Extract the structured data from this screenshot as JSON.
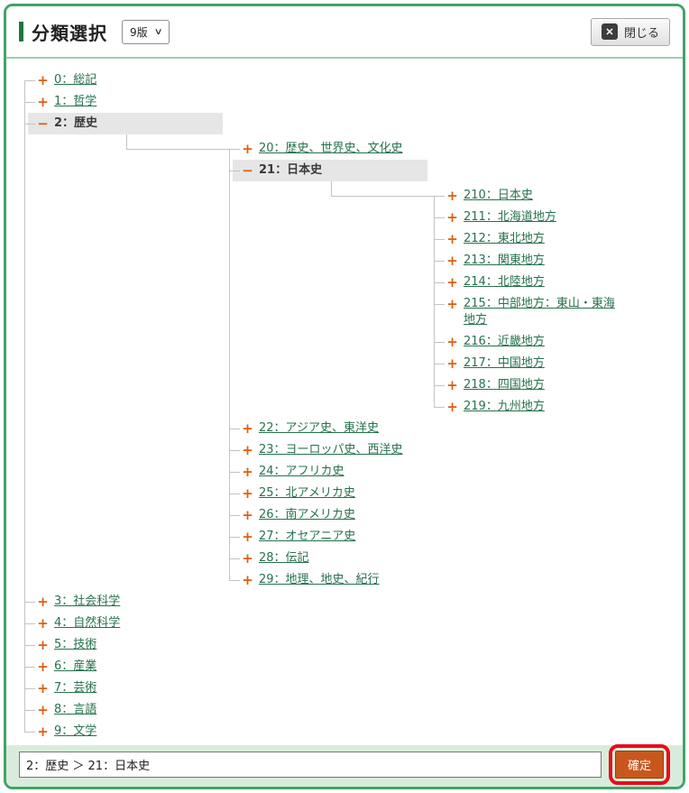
{
  "header": {
    "title": "分類選択",
    "edition_select": {
      "value": "9版",
      "chevron_icon": "∨"
    },
    "close_button": {
      "label": "閉じる",
      "icon_glyph": "✕"
    }
  },
  "tree": {
    "root": [
      {
        "toggle": "+",
        "label": "0：総記"
      },
      {
        "toggle": "+",
        "label": "1：哲学"
      },
      {
        "toggle": "−",
        "label": "2：歴史",
        "children": [
          {
            "toggle": "+",
            "label": "20：歴史、世界史、文化史"
          },
          {
            "toggle": "−",
            "label": "21：日本史",
            "children": [
              {
                "toggle": "+",
                "label": "210：日本史"
              },
              {
                "toggle": "+",
                "label": "211：北海道地方"
              },
              {
                "toggle": "+",
                "label": "212：東北地方"
              },
              {
                "toggle": "+",
                "label": "213：関東地方"
              },
              {
                "toggle": "+",
                "label": "214：北陸地方"
              },
              {
                "toggle": "+",
                "label": "215：中部地方：東山・東海地方"
              },
              {
                "toggle": "+",
                "label": "216：近畿地方"
              },
              {
                "toggle": "+",
                "label": "217：中国地方"
              },
              {
                "toggle": "+",
                "label": "218：四国地方"
              },
              {
                "toggle": "+",
                "label": "219：九州地方"
              }
            ]
          },
          {
            "toggle": "+",
            "label": "22：アジア史、東洋史"
          },
          {
            "toggle": "+",
            "label": "23：ヨーロッパ史、西洋史"
          },
          {
            "toggle": "+",
            "label": "24：アフリカ史"
          },
          {
            "toggle": "+",
            "label": "25：北アメリカ史"
          },
          {
            "toggle": "+",
            "label": "26：南アメリカ史"
          },
          {
            "toggle": "+",
            "label": "27：オセアニア史"
          },
          {
            "toggle": "+",
            "label": "28：伝記"
          },
          {
            "toggle": "+",
            "label": "29：地理、地史、紀行"
          }
        ]
      },
      {
        "toggle": "+",
        "label": "3：社会科学"
      },
      {
        "toggle": "+",
        "label": "4：自然科学"
      },
      {
        "toggle": "+",
        "label": "5：技術"
      },
      {
        "toggle": "+",
        "label": "6：産業"
      },
      {
        "toggle": "+",
        "label": "7：芸術"
      },
      {
        "toggle": "+",
        "label": "8：言語"
      },
      {
        "toggle": "+",
        "label": "9：文学"
      }
    ]
  },
  "footer": {
    "path_value": "2：歴史 ＞ 21：日本史",
    "confirm_label": "確定"
  },
  "colors": {
    "border_green": "#43a466",
    "title_accent_green": "#1b7a3d",
    "link_green": "#26724d",
    "toggle_orange": "#e05e10",
    "selected_bg_gray": "#e6e6e6",
    "footer_bg_green": "#d9ecdc",
    "confirm_bg_orange": "#c9571d",
    "highlight_red": "#e80c1c"
  }
}
